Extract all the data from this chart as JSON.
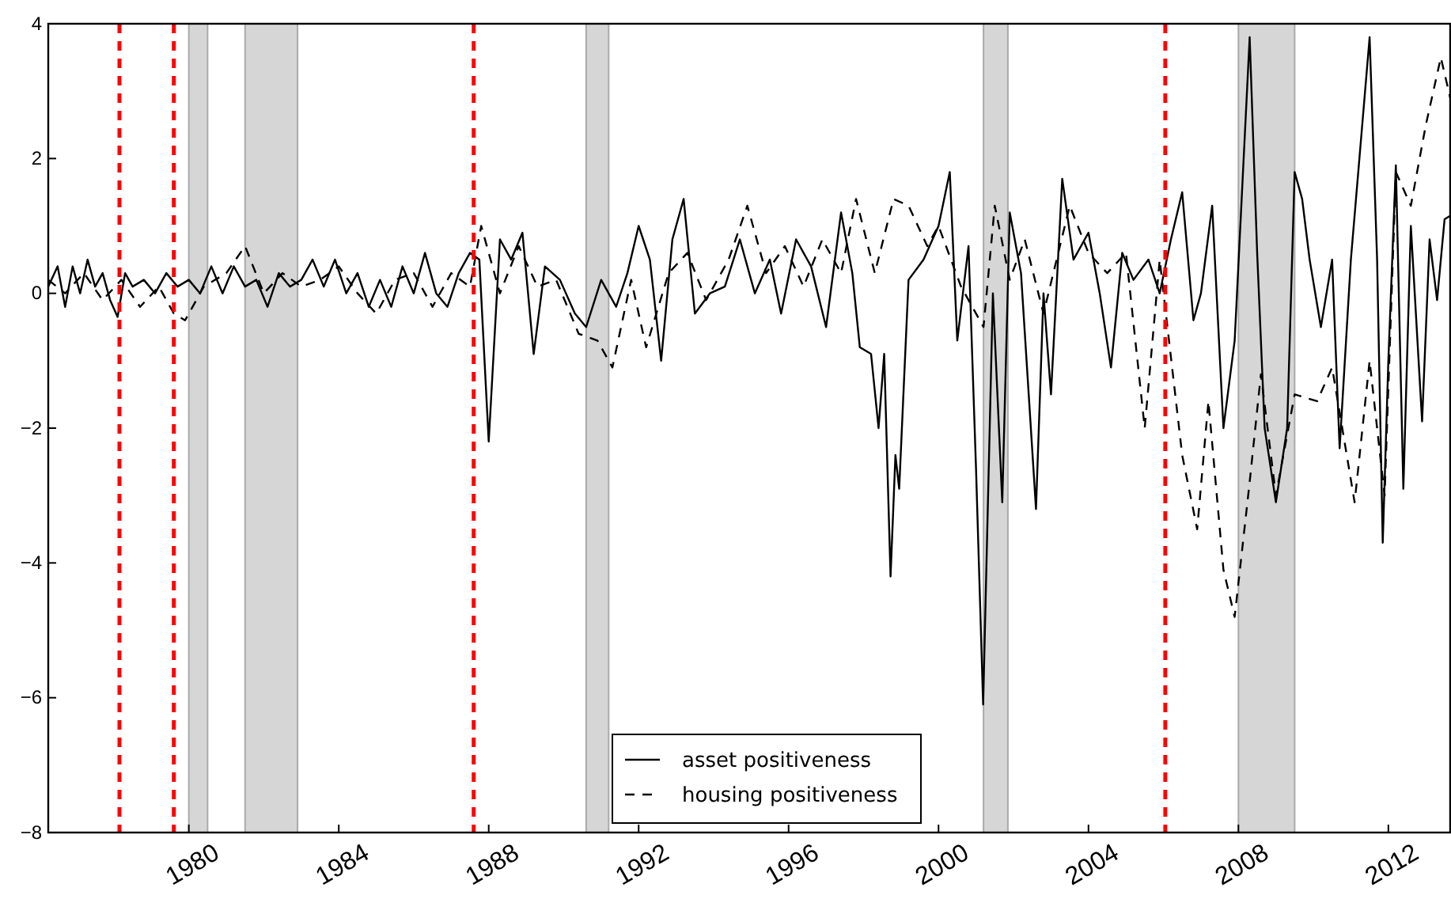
{
  "chart_data": {
    "type": "line",
    "xlim": [
      1976.25,
      2013.65
    ],
    "ylim": [
      -8,
      4
    ],
    "xticks": [
      1980,
      1984,
      1988,
      1992,
      1996,
      2000,
      2004,
      2008,
      2012
    ],
    "yticks": [
      -8,
      -6,
      -4,
      -2,
      0,
      2,
      4
    ],
    "grid": false,
    "legend": "bottom",
    "bands": [
      {
        "axis": "x",
        "from": 1980.0,
        "to": 1980.5,
        "color": "#d6d6d6"
      },
      {
        "axis": "x",
        "from": 1981.5,
        "to": 1982.9,
        "color": "#d6d6d6"
      },
      {
        "axis": "x",
        "from": 1990.6,
        "to": 1991.2,
        "color": "#d6d6d6"
      },
      {
        "axis": "x",
        "from": 2001.2,
        "to": 2001.85,
        "color": "#d6d6d6"
      },
      {
        "axis": "x",
        "from": 2008.0,
        "to": 2009.5,
        "color": "#d6d6d6"
      }
    ],
    "ref_lines": [
      {
        "axis": "x",
        "value": 1978.15,
        "color": "#ff0000",
        "line_style": "dashed"
      },
      {
        "axis": "x",
        "value": 1979.6,
        "color": "#ff0000",
        "line_style": "dashed"
      },
      {
        "axis": "x",
        "value": 1987.6,
        "color": "#ff0000",
        "line_style": "dashed"
      },
      {
        "axis": "x",
        "value": 2006.05,
        "color": "#ff0000",
        "line_style": "dashed"
      }
    ],
    "series": [
      {
        "name": "asset positiveness",
        "color": "#000000",
        "line_style": "solid",
        "x": [
          1976.25,
          1976.5,
          1976.7,
          1976.9,
          1977.1,
          1977.3,
          1977.5,
          1977.7,
          1977.9,
          1978.1,
          1978.3,
          1978.5,
          1978.8,
          1979.1,
          1979.4,
          1979.7,
          1980.0,
          1980.3,
          1980.6,
          1980.9,
          1981.2,
          1981.5,
          1981.8,
          1982.1,
          1982.4,
          1982.7,
          1983.0,
          1983.3,
          1983.6,
          1983.9,
          1984.2,
          1984.5,
          1984.8,
          1985.1,
          1985.4,
          1985.7,
          1986.0,
          1986.3,
          1986.6,
          1986.9,
          1987.2,
          1987.5,
          1987.75,
          1988.0,
          1988.3,
          1988.6,
          1988.9,
          1989.2,
          1989.5,
          1989.9,
          1990.3,
          1990.6,
          1991.0,
          1991.4,
          1991.7,
          1992.0,
          1992.3,
          1992.6,
          1992.9,
          1993.2,
          1993.5,
          1993.9,
          1994.3,
          1994.7,
          1995.1,
          1995.5,
          1995.8,
          1996.2,
          1996.6,
          1997.0,
          1997.4,
          1997.7,
          1997.9,
          1998.2,
          1998.4,
          1998.55,
          1998.72,
          1998.85,
          1998.95,
          1999.2,
          1999.6,
          2000.0,
          2000.3,
          2000.5,
          2000.8,
          2001.0,
          2001.19,
          2001.45,
          2001.7,
          2001.9,
          2002.2,
          2002.6,
          2002.8,
          2003.0,
          2003.3,
          2003.6,
          2004.0,
          2004.3,
          2004.6,
          2004.9,
          2005.2,
          2005.6,
          2005.9,
          2006.2,
          2006.5,
          2006.8,
          2007.0,
          2007.3,
          2007.6,
          2007.9,
          2008.3,
          2008.5,
          2008.7,
          2009.0,
          2009.3,
          2009.5,
          2009.7,
          2009.9,
          2010.2,
          2010.5,
          2010.7,
          2011.0,
          2011.5,
          2011.7,
          2011.85,
          2012.0,
          2012.2,
          2012.4,
          2012.6,
          2012.9,
          2013.1,
          2013.3,
          2013.5,
          2013.65
        ],
        "values": [
          0.1,
          0.4,
          -0.2,
          0.4,
          0.0,
          0.5,
          0.1,
          0.3,
          -0.1,
          -0.35,
          0.3,
          0.1,
          0.2,
          0.0,
          0.3,
          0.1,
          0.2,
          0.0,
          0.4,
          0.0,
          0.4,
          0.1,
          0.2,
          -0.2,
          0.3,
          0.1,
          0.2,
          0.5,
          0.1,
          0.5,
          0.0,
          0.3,
          -0.2,
          0.2,
          -0.2,
          0.4,
          0.0,
          0.6,
          0.0,
          -0.2,
          0.3,
          0.6,
          0.5,
          -2.2,
          0.8,
          0.5,
          0.9,
          -0.9,
          0.4,
          0.2,
          -0.3,
          -0.5,
          0.2,
          -0.2,
          0.3,
          1.0,
          0.5,
          -1.0,
          0.8,
          1.4,
          -0.3,
          0.0,
          0.1,
          0.8,
          0.0,
          0.5,
          -0.3,
          0.8,
          0.4,
          -0.5,
          1.2,
          0.3,
          -0.8,
          -0.9,
          -2.0,
          -0.9,
          -4.2,
          -2.4,
          -2.9,
          0.2,
          0.5,
          1.0,
          1.8,
          -0.7,
          0.7,
          -2.6,
          -6.1,
          0.0,
          -3.1,
          1.2,
          0.3,
          -3.2,
          0.0,
          -1.5,
          1.7,
          0.5,
          0.9,
          0.0,
          -1.1,
          0.6,
          0.2,
          0.5,
          0.0,
          0.8,
          1.5,
          -0.4,
          0.0,
          1.3,
          -2.0,
          -0.7,
          3.8,
          0.6,
          -2.0,
          -3.1,
          -2.0,
          1.8,
          1.4,
          0.5,
          -0.5,
          0.5,
          -2.3,
          0.5,
          3.8,
          0.5,
          -3.7,
          -1.0,
          1.9,
          -2.9,
          1.0,
          -1.9,
          0.8,
          -0.1,
          1.1,
          1.15
        ]
      },
      {
        "name": "housing positiveness",
        "color": "#000000",
        "line_style": "dashed",
        "x": [
          1976.25,
          1976.7,
          1977.2,
          1977.7,
          1978.2,
          1978.7,
          1979.2,
          1979.6,
          1979.9,
          1980.4,
          1981.0,
          1981.5,
          1982.0,
          1982.5,
          1983.0,
          1983.5,
          1984.0,
          1984.5,
          1985.0,
          1985.5,
          1986.0,
          1986.5,
          1987.0,
          1987.5,
          1987.8,
          1988.3,
          1988.8,
          1989.3,
          1989.8,
          1990.4,
          1990.9,
          1991.3,
          1991.8,
          1992.2,
          1992.8,
          1993.3,
          1993.8,
          1994.4,
          1994.9,
          1995.4,
          1995.9,
          1996.4,
          1996.9,
          1997.4,
          1997.8,
          1998.3,
          1998.8,
          1999.2,
          1999.7,
          2000.0,
          2000.6,
          2001.2,
          2001.5,
          2001.9,
          2002.3,
          2002.8,
          2003.5,
          2004.0,
          2004.5,
          2005.0,
          2005.5,
          2005.9,
          2006.5,
          2006.9,
          2007.2,
          2007.6,
          2007.9,
          2008.3,
          2008.6,
          2009.0,
          2009.5,
          2010.1,
          2010.5,
          2011.1,
          2011.5,
          2011.9,
          2012.2,
          2012.6,
          2013.0,
          2013.4,
          2013.65
        ],
        "values": [
          0.2,
          0.0,
          0.3,
          -0.1,
          0.2,
          -0.2,
          0.1,
          -0.3,
          -0.4,
          0.1,
          0.3,
          0.7,
          0.0,
          0.3,
          0.1,
          0.2,
          0.4,
          0.0,
          -0.3,
          0.2,
          0.3,
          -0.2,
          0.3,
          0.1,
          1.0,
          0.0,
          0.7,
          0.1,
          0.2,
          -0.6,
          -0.7,
          -1.1,
          0.2,
          -0.8,
          0.3,
          0.6,
          -0.1,
          0.5,
          1.3,
          0.3,
          0.7,
          0.1,
          0.8,
          0.3,
          1.4,
          0.3,
          1.4,
          1.3,
          0.7,
          1.0,
          0.1,
          -0.5,
          1.3,
          0.2,
          0.8,
          -0.3,
          1.3,
          0.6,
          0.3,
          0.6,
          -2.0,
          0.5,
          -2.4,
          -3.5,
          -1.6,
          -4.1,
          -4.8,
          -2.8,
          -1.2,
          -3.0,
          -1.5,
          -1.6,
          -1.1,
          -3.1,
          -1.0,
          -3.0,
          1.8,
          1.3,
          2.5,
          3.5,
          2.9
        ]
      }
    ]
  }
}
